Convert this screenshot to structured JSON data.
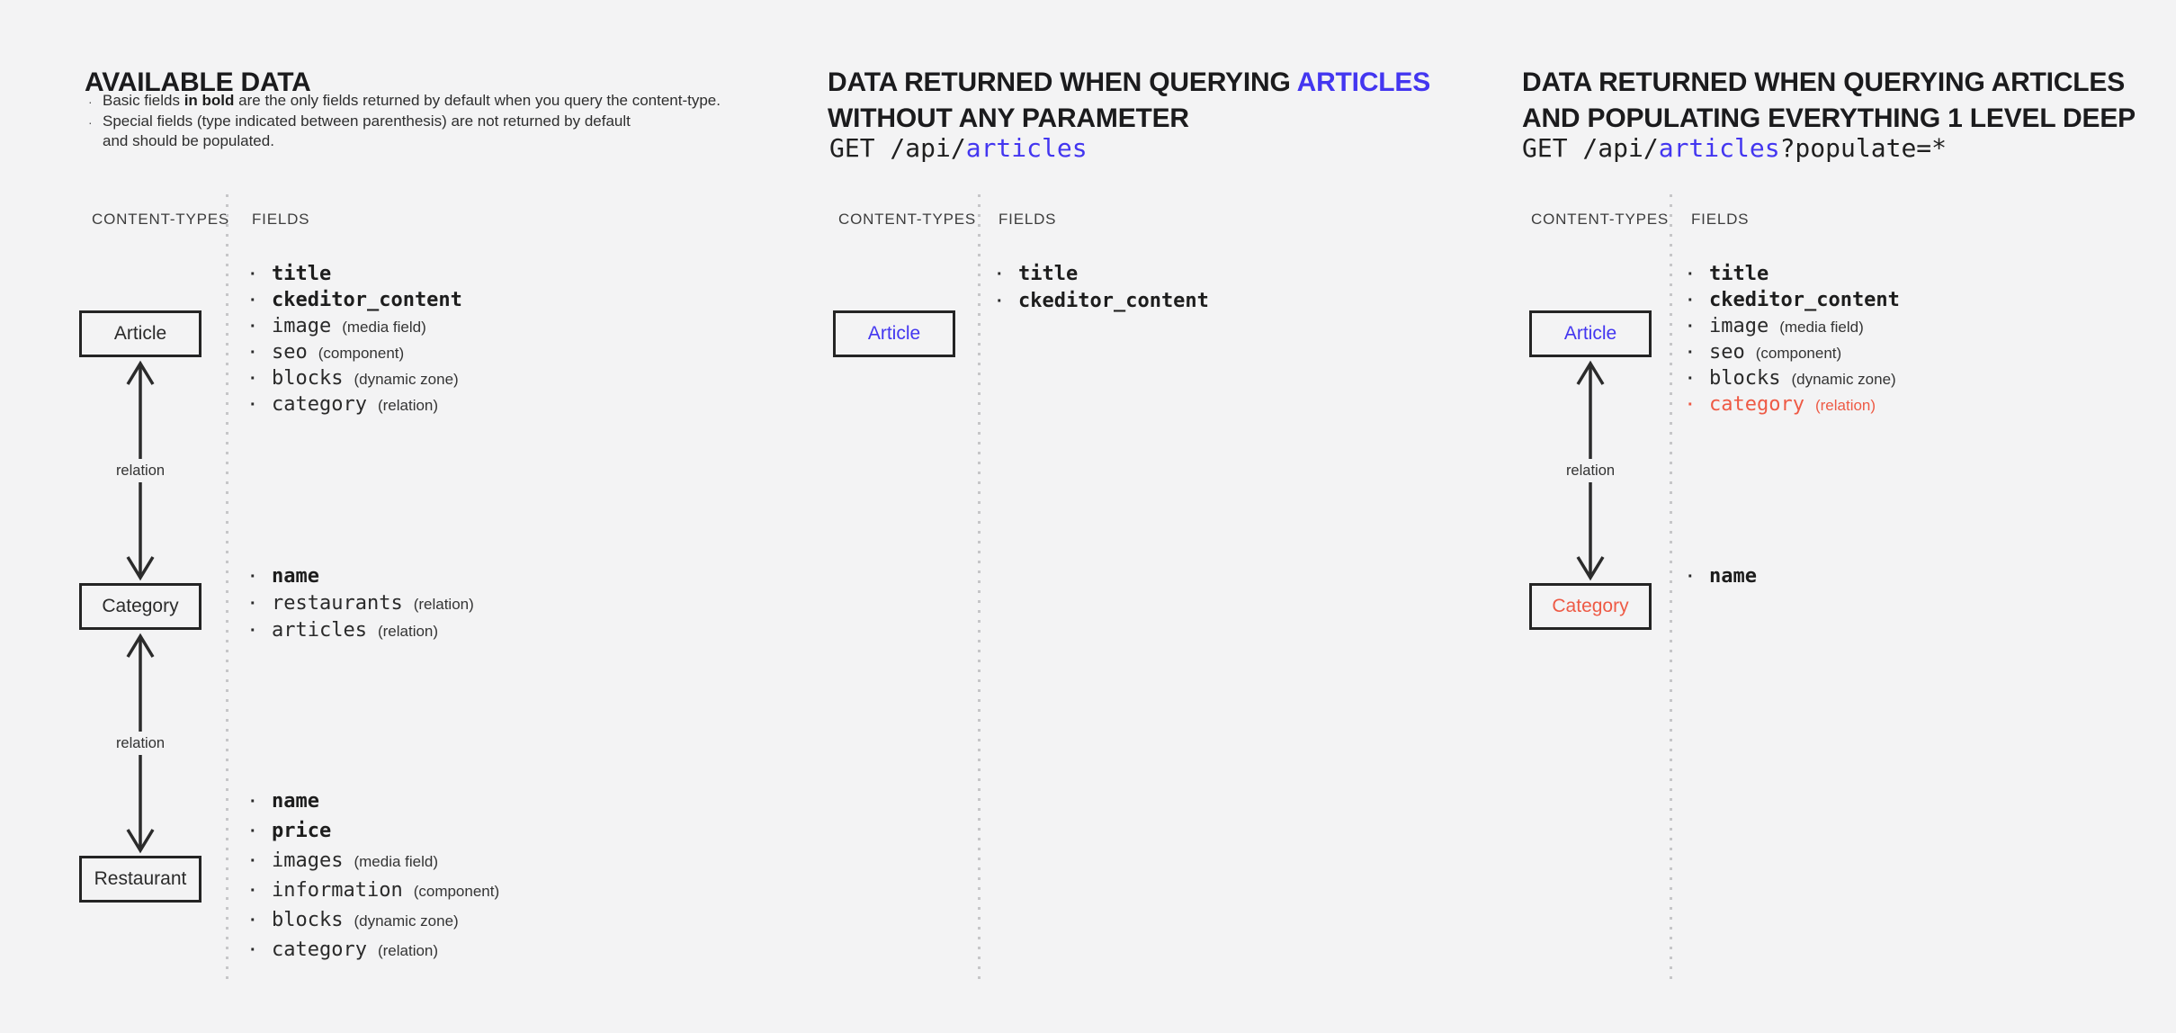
{
  "colors": {
    "blue": "#4336f0",
    "red": "#ee5a45"
  },
  "s1": {
    "title": "AVAILABLE DATA",
    "note1_pre": "Basic fields ",
    "note1_bold": "in bold",
    "note1_post": " are the only fields returned by default when you query the content-type.",
    "note2_line1": "Special fields (type indicated between parenthesis) are not returned by default",
    "note2_line2": "and should be populated.",
    "col_types": "CONTENT-TYPES",
    "col_fields": "FIELDS",
    "node_article": "Article",
    "node_category": "Category",
    "node_restaurant": "Restaurant",
    "relation_label": "relation",
    "article_fields": [
      {
        "name": "title",
        "bold": true
      },
      {
        "name": "ckeditor_content",
        "bold": true
      },
      {
        "name": "image",
        "type": "(media field)"
      },
      {
        "name": "seo",
        "type": "(component)"
      },
      {
        "name": "blocks",
        "type": "(dynamic zone)"
      },
      {
        "name": "category",
        "type": "(relation)"
      }
    ],
    "category_fields": [
      {
        "name": "name",
        "bold": true
      },
      {
        "name": "restaurants",
        "type": "(relation)"
      },
      {
        "name": "articles",
        "type": "(relation)"
      }
    ],
    "restaurant_fields": [
      {
        "name": "name",
        "bold": true
      },
      {
        "name": "price",
        "bold": true
      },
      {
        "name": "images",
        "type": "(media field)"
      },
      {
        "name": "information",
        "type": "(component)"
      },
      {
        "name": "blocks",
        "type": "(dynamic zone)"
      },
      {
        "name": "category",
        "type": "(relation)"
      }
    ]
  },
  "s2": {
    "title_line1_pre": "DATA RETURNED WHEN QUERYING ",
    "title_line1_accent": "ARTICLES",
    "title_line2": "WITHOUT ANY PARAMETER",
    "request": [
      {
        "text": "GET /api/"
      },
      {
        "text": "articles",
        "accent": true
      }
    ],
    "col_types": "CONTENT-TYPES",
    "col_fields": "FIELDS",
    "node_article": "Article",
    "fields": [
      {
        "name": "title",
        "bold": true
      },
      {
        "name": "ckeditor_content",
        "bold": true
      }
    ]
  },
  "s3": {
    "title_line1": "DATA RETURNED WHEN QUERYING ARTICLES",
    "title_line2": "AND POPULATING EVERYTHING 1 LEVEL DEEP",
    "request": [
      {
        "text": "GET /api/"
      },
      {
        "text": "articles",
        "accent": true
      },
      {
        "text": "?populate=*"
      }
    ],
    "col_types": "CONTENT-TYPES",
    "col_fields": "FIELDS",
    "node_article": "Article",
    "node_category": "Category",
    "relation_label": "relation",
    "article_fields": [
      {
        "name": "title",
        "bold": true
      },
      {
        "name": "ckeditor_content",
        "bold": true
      },
      {
        "name": "image",
        "type": "(media field)"
      },
      {
        "name": "seo",
        "type": "(component)"
      },
      {
        "name": "blocks",
        "type": "(dynamic zone)"
      },
      {
        "name": "category",
        "type": "(relation)",
        "accent": true
      }
    ],
    "category_fields": [
      {
        "name": "name",
        "bold": true
      }
    ]
  }
}
